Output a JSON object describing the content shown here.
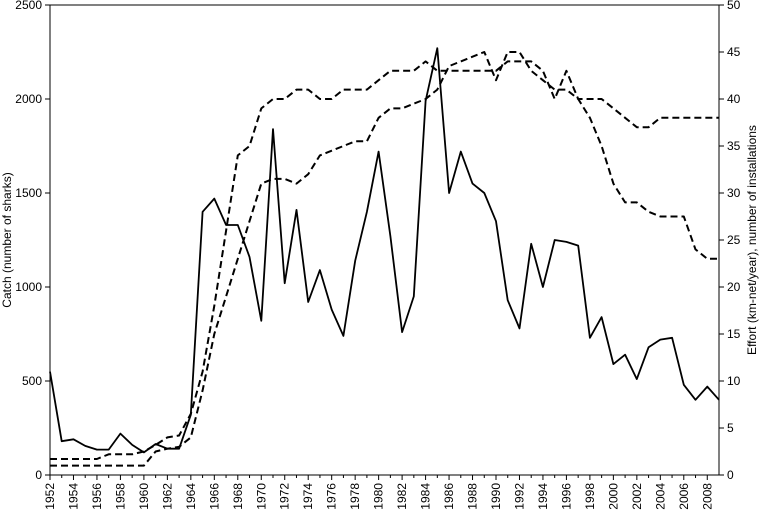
{
  "chart_data": {
    "type": "line",
    "title": "",
    "xlabel": "",
    "ylabel": "Catch (number of sharks)",
    "y2label": "Effort (km-net/year), number of installations",
    "xlim": [
      1952,
      2009
    ],
    "ylim": [
      0,
      2500
    ],
    "y2lim": [
      0,
      50
    ],
    "x_ticks": [
      "1952",
      "1954",
      "1956",
      "1958",
      "1960",
      "1962",
      "1964",
      "1966",
      "1968",
      "1970",
      "1972",
      "1974",
      "1976",
      "1978",
      "1980",
      "1982",
      "1984",
      "1986",
      "1988",
      "1990",
      "1992",
      "1994",
      "1996",
      "1998",
      "2000",
      "2002",
      "2004",
      "2006",
      "2008"
    ],
    "y_ticks": [
      "0",
      "500",
      "1000",
      "1500",
      "2000",
      "2500"
    ],
    "y2_ticks": [
      "0",
      "5",
      "10",
      "15",
      "20",
      "25",
      "30",
      "35",
      "40",
      "45",
      "50"
    ],
    "grid": false,
    "legend": "none",
    "series": [
      {
        "axis": "left",
        "style": "solid",
        "x": [
          1952,
          1953,
          1954,
          1955,
          1956,
          1957,
          1958,
          1959,
          1960,
          1961,
          1962,
          1963,
          1964,
          1965,
          1966,
          1967,
          1968,
          1969,
          1970,
          1971,
          1972,
          1973,
          1974,
          1975,
          1976,
          1977,
          1978,
          1979,
          1980,
          1981,
          1982,
          1983,
          1984,
          1985,
          1986,
          1987,
          1988,
          1989,
          1990,
          1991,
          1992,
          1993,
          1994,
          1995,
          1996,
          1997,
          1998,
          1999,
          2000,
          2001,
          2002,
          2003,
          2004,
          2005,
          2006,
          2007,
          2008,
          2009
        ],
        "values": [
          550,
          180,
          190,
          155,
          135,
          135,
          220,
          160,
          120,
          165,
          140,
          140,
          320,
          1400,
          1470,
          1330,
          1330,
          1160,
          820,
          1840,
          1020,
          1410,
          920,
          1090,
          880,
          740,
          1140,
          1400,
          1720,
          1270,
          760,
          950,
          1990,
          2270,
          1500,
          1720,
          1550,
          1500,
          1350,
          930,
          780,
          1230,
          1000,
          1250,
          1240,
          1220,
          730,
          840,
          590,
          640,
          510,
          680,
          720,
          730,
          480,
          400,
          470,
          400
        ]
      },
      {
        "axis": "right",
        "style": "dashed",
        "x": [
          1952,
          1953,
          1954,
          1955,
          1956,
          1957,
          1958,
          1959,
          1960,
          1961,
          1962,
          1963,
          1964,
          1965,
          1966,
          1967,
          1968,
          1969,
          1970,
          1971,
          1972,
          1973,
          1974,
          1975,
          1976,
          1977,
          1978,
          1979,
          1980,
          1981,
          1982,
          1983,
          1984,
          1985,
          1986,
          1987,
          1988,
          1989,
          1990,
          1991,
          1992,
          1993,
          1994,
          1995,
          1996,
          1997,
          1998,
          1999,
          2000,
          2001,
          2002,
          2003,
          2004,
          2005,
          2006,
          2007,
          2008,
          2009
        ],
        "values": [
          1.7,
          1.7,
          1.7,
          1.7,
          1.7,
          2.2,
          2.2,
          2.2,
          2.5,
          3.2,
          4,
          4.2,
          6.5,
          11,
          18,
          26,
          34,
          35,
          39,
          40,
          40,
          41,
          41,
          40,
          40,
          41,
          41,
          41,
          42,
          43,
          43,
          43,
          44,
          43,
          43,
          43,
          43,
          43,
          43,
          44,
          44,
          44,
          43,
          40,
          43,
          40,
          40,
          40,
          39,
          38,
          37,
          37,
          38,
          38,
          38,
          38,
          38,
          38
        ]
      },
      {
        "axis": "right",
        "style": "dashed",
        "x": [
          1952,
          1953,
          1954,
          1955,
          1956,
          1957,
          1958,
          1959,
          1960,
          1961,
          1962,
          1963,
          1964,
          1965,
          1966,
          1967,
          1968,
          1969,
          1970,
          1971,
          1972,
          1973,
          1974,
          1975,
          1976,
          1977,
          1978,
          1979,
          1980,
          1981,
          1982,
          1983,
          1984,
          1985,
          1986,
          1987,
          1988,
          1989,
          1990,
          1991,
          1992,
          1993,
          1994,
          1995,
          1996,
          1997,
          1998,
          1999,
          2000,
          2001,
          2002,
          2003,
          2004,
          2005,
          2006,
          2007,
          2008,
          2009
        ],
        "values": [
          1,
          1,
          1,
          1,
          1,
          1,
          1,
          1,
          1,
          2.5,
          2.8,
          3,
          4,
          9,
          15,
          19,
          23,
          27,
          31,
          31.5,
          31.5,
          31,
          32,
          34,
          34.5,
          35,
          35.5,
          35.5,
          38,
          39,
          39,
          39.5,
          40,
          41,
          43.5,
          44,
          44.5,
          45,
          42,
          45,
          45,
          43,
          42,
          41,
          41,
          40,
          38,
          35,
          31,
          29,
          29,
          28,
          27.5,
          27.5,
          27.5,
          24,
          23,
          23
        ]
      }
    ]
  }
}
